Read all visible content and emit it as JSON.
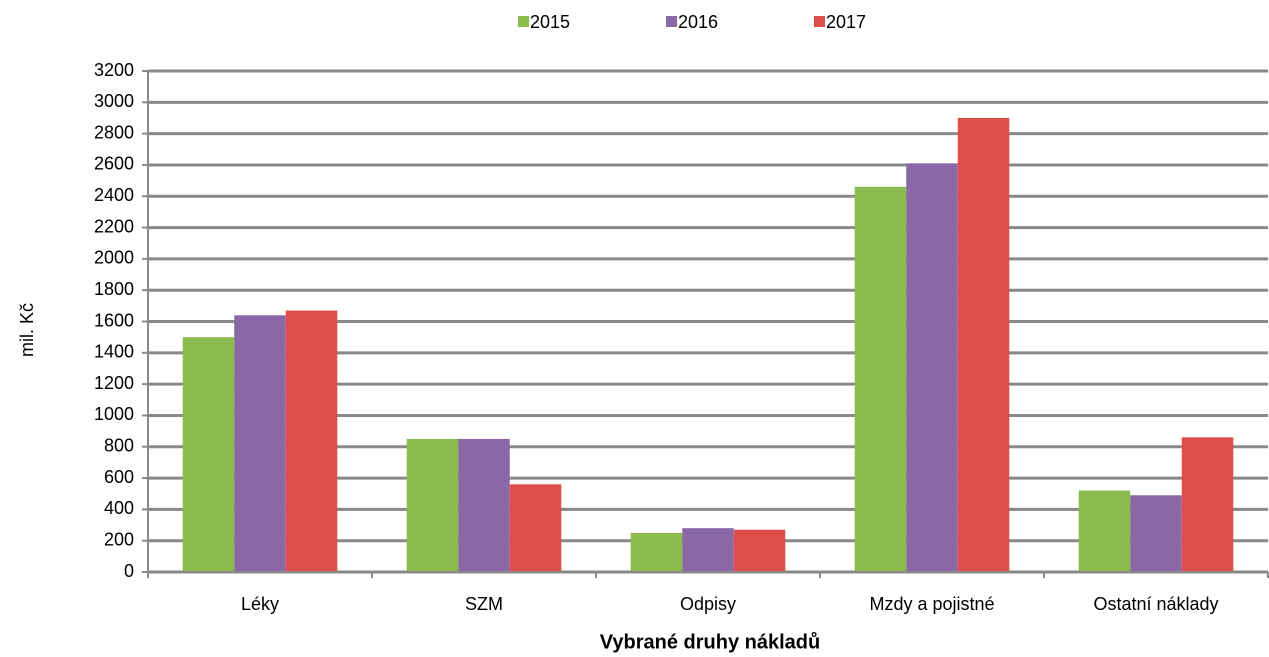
{
  "chart_data": {
    "type": "bar",
    "x_label": "Vybrané druhy nákladů",
    "y_label": "mil. Kč",
    "categories": [
      "Léky",
      "SZM",
      "Odpisy",
      "Mzdy a pojistné",
      "Ostatní náklady"
    ],
    "series": [
      {
        "name": "2015",
        "color": "#8bbb4f",
        "values": [
          1500,
          850,
          250,
          2460,
          520
        ]
      },
      {
        "name": "2016",
        "color": "#8a67a6",
        "values": [
          1640,
          850,
          280,
          2610,
          490
        ]
      },
      {
        "name": "2017",
        "color": "#dd4e4b",
        "values": [
          1670,
          560,
          270,
          2900,
          860
        ]
      }
    ],
    "ylim": [
      0,
      3200
    ],
    "yticks": [
      0,
      200,
      400,
      600,
      800,
      1000,
      1200,
      1400,
      1600,
      1800,
      2000,
      2200,
      2400,
      2600,
      2800,
      3000,
      3200
    ],
    "grid": true,
    "legend": "top"
  }
}
